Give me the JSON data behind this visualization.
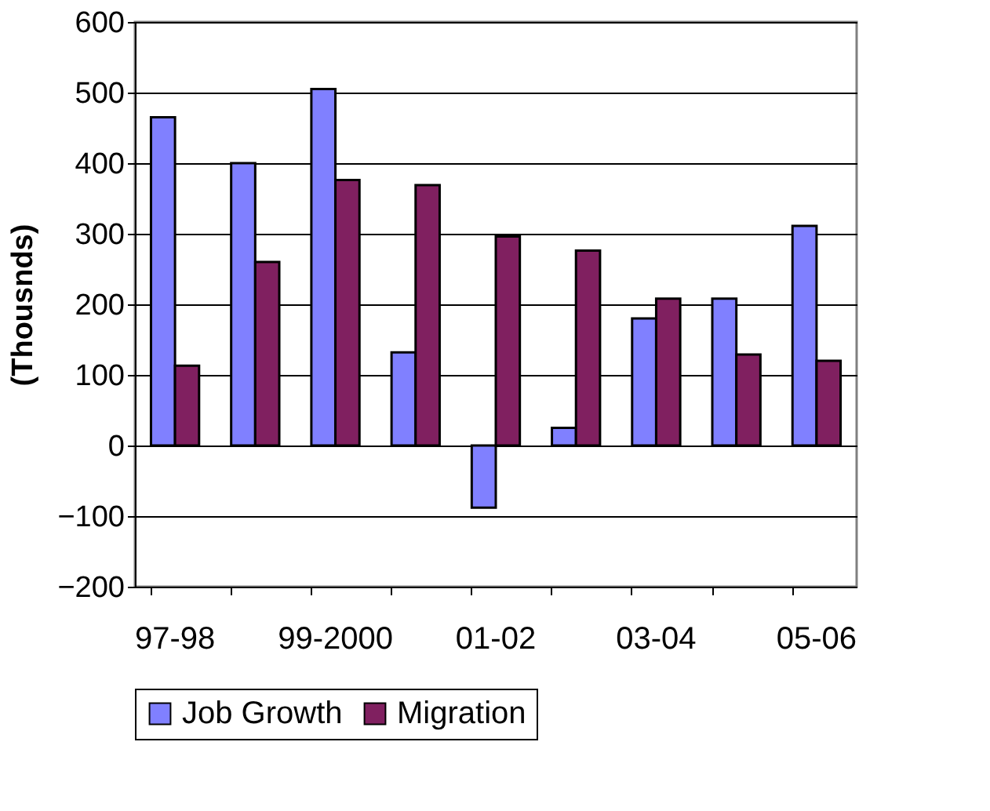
{
  "chart_data": {
    "type": "bar",
    "ylabel": "(Thousnds)",
    "categories": [
      "97-98",
      null,
      "99-2000",
      null,
      "01-02",
      null,
      "03-04",
      null,
      "05-06"
    ],
    "series": [
      {
        "name": "Job Growth",
        "color": "#8080ff",
        "values": [
          465,
          400,
          505,
          132,
          -88,
          25,
          180,
          208,
          311
        ]
      },
      {
        "name": "Migration",
        "color": "#802060",
        "values": [
          113,
          260,
          376,
          369,
          296,
          276,
          208,
          129,
          120
        ]
      }
    ],
    "ylim": [
      -200,
      600
    ],
    "yticks": [
      -200,
      -100,
      0,
      100,
      200,
      300,
      400,
      500,
      600
    ],
    "grid": "y",
    "legend": "bottom"
  }
}
